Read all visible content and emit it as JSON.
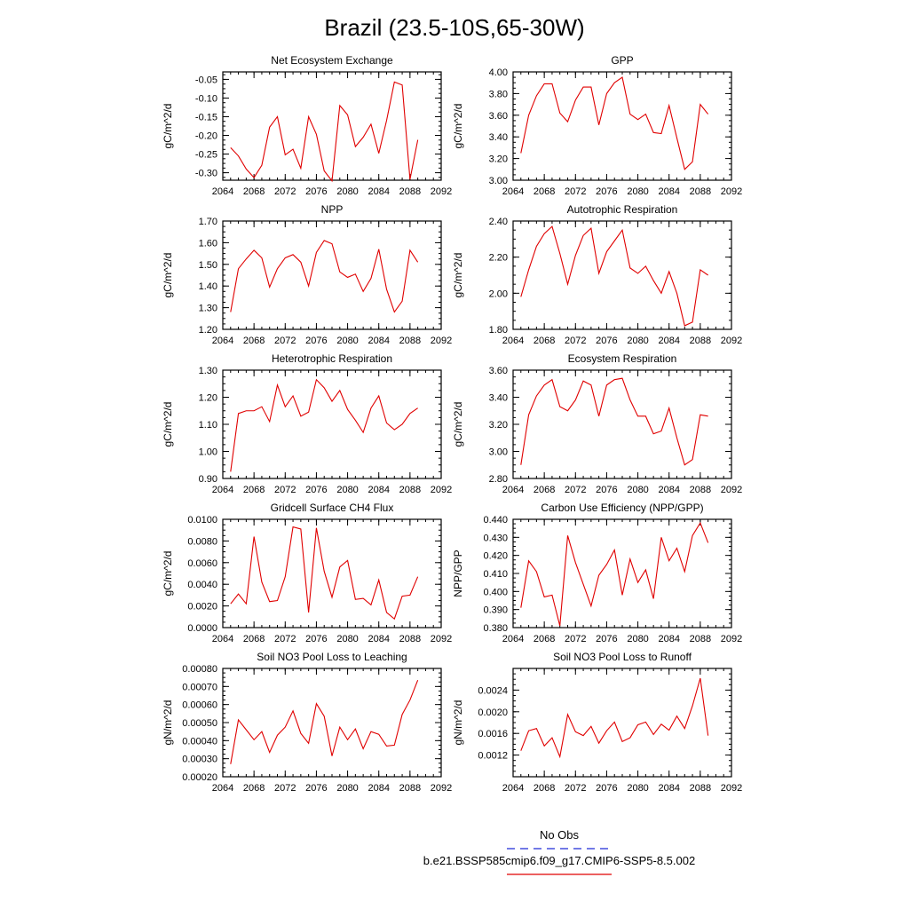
{
  "page": {
    "title": "Brazil (23.5-10S,65-30W)"
  },
  "legend": {
    "entries": [
      {
        "label": "No Obs",
        "color": "#1f2bd6",
        "dash": "dashed"
      },
      {
        "label": "b.e21.BSSP585cmip6.f09_g17.CMIP6-SSP5-8.5.002",
        "color": "#e00000",
        "dash": "solid"
      }
    ]
  },
  "chart_data": [
    {
      "type": "line",
      "title": "Net Ecosystem Exchange",
      "ylabel": "gC/m^2/d",
      "xlim": [
        2064,
        2092
      ],
      "xticks": [
        "2064",
        "2068",
        "2072",
        "2076",
        "2080",
        "2084",
        "2088",
        "2092"
      ],
      "ylim": [
        -0.32,
        -0.03
      ],
      "yticks": [
        "-0.30",
        "-0.25",
        "-0.20",
        "-0.15",
        "-0.10",
        "-0.05"
      ],
      "x": [
        2065,
        2066,
        2067,
        2068,
        2069,
        2070,
        2071,
        2072,
        2073,
        2074,
        2075,
        2076,
        2077,
        2078,
        2079,
        2080,
        2081,
        2082,
        2083,
        2084,
        2085,
        2086,
        2087,
        2088,
        2089
      ],
      "series": [
        {
          "color": "#e00000",
          "values": [
            -0.233,
            -0.255,
            -0.29,
            -0.313,
            -0.28,
            -0.178,
            -0.15,
            -0.252,
            -0.237,
            -0.288,
            -0.15,
            -0.197,
            -0.295,
            -0.322,
            -0.12,
            -0.145,
            -0.23,
            -0.205,
            -0.17,
            -0.248,
            -0.16,
            -0.057,
            -0.065,
            -0.318,
            -0.212
          ]
        }
      ]
    },
    {
      "type": "line",
      "title": "GPP",
      "ylabel": "gC/m^2/d",
      "xlim": [
        2064,
        2092
      ],
      "xticks": [
        "2064",
        "2068",
        "2072",
        "2076",
        "2080",
        "2084",
        "2088",
        "2092"
      ],
      "ylim": [
        3.0,
        4.0
      ],
      "yticks": [
        "3.00",
        "3.20",
        "3.40",
        "3.60",
        "3.80",
        "4.00"
      ],
      "x": [
        2065,
        2066,
        2067,
        2068,
        2069,
        2070,
        2071,
        2072,
        2073,
        2074,
        2075,
        2076,
        2077,
        2078,
        2079,
        2080,
        2081,
        2082,
        2083,
        2084,
        2085,
        2086,
        2087,
        2088,
        2089
      ],
      "series": [
        {
          "color": "#e00000",
          "values": [
            3.25,
            3.6,
            3.78,
            3.89,
            3.89,
            3.62,
            3.54,
            3.74,
            3.86,
            3.86,
            3.51,
            3.8,
            3.9,
            3.95,
            3.61,
            3.56,
            3.61,
            3.44,
            3.43,
            3.69,
            3.39,
            3.1,
            3.17,
            3.7,
            3.61
          ]
        }
      ]
    },
    {
      "type": "line",
      "title": "NPP",
      "ylabel": "gC/m^2/d",
      "xlim": [
        2064,
        2092
      ],
      "xticks": [
        "2064",
        "2068",
        "2072",
        "2076",
        "2080",
        "2084",
        "2088",
        "2092"
      ],
      "ylim": [
        1.2,
        1.7
      ],
      "yticks": [
        "1.20",
        "1.30",
        "1.40",
        "1.50",
        "1.60",
        "1.70"
      ],
      "x": [
        2065,
        2066,
        2067,
        2068,
        2069,
        2070,
        2071,
        2072,
        2073,
        2074,
        2075,
        2076,
        2077,
        2078,
        2079,
        2080,
        2081,
        2082,
        2083,
        2084,
        2085,
        2086,
        2087,
        2088,
        2089
      ],
      "series": [
        {
          "color": "#e00000",
          "values": [
            1.28,
            1.48,
            1.525,
            1.565,
            1.53,
            1.395,
            1.48,
            1.53,
            1.545,
            1.51,
            1.4,
            1.555,
            1.61,
            1.595,
            1.465,
            1.44,
            1.455,
            1.375,
            1.435,
            1.57,
            1.385,
            1.28,
            1.33,
            1.565,
            1.51
          ]
        }
      ]
    },
    {
      "type": "line",
      "title": "Autotrophic Respiration",
      "ylabel": "gC/m^2/d",
      "xlim": [
        2064,
        2092
      ],
      "xticks": [
        "2064",
        "2068",
        "2072",
        "2076",
        "2080",
        "2084",
        "2088",
        "2092"
      ],
      "ylim": [
        1.8,
        2.4
      ],
      "yticks": [
        "1.80",
        "2.00",
        "2.20",
        "2.40"
      ],
      "x": [
        2065,
        2066,
        2067,
        2068,
        2069,
        2070,
        2071,
        2072,
        2073,
        2074,
        2075,
        2076,
        2077,
        2078,
        2079,
        2080,
        2081,
        2082,
        2083,
        2084,
        2085,
        2086,
        2087,
        2088,
        2089
      ],
      "series": [
        {
          "color": "#e00000",
          "values": [
            1.98,
            2.13,
            2.26,
            2.33,
            2.37,
            2.22,
            2.05,
            2.21,
            2.32,
            2.36,
            2.11,
            2.23,
            2.29,
            2.35,
            2.14,
            2.11,
            2.15,
            2.07,
            2.0,
            2.12,
            2.0,
            1.82,
            1.84,
            2.13,
            2.1
          ]
        }
      ]
    },
    {
      "type": "line",
      "title": "Heterotrophic Respiration",
      "ylabel": "gC/m^2/d",
      "xlim": [
        2064,
        2092
      ],
      "xticks": [
        "2064",
        "2068",
        "2072",
        "2076",
        "2080",
        "2084",
        "2088",
        "2092"
      ],
      "ylim": [
        0.9,
        1.3
      ],
      "yticks": [
        "0.90",
        "1.00",
        "1.10",
        "1.20",
        "1.30"
      ],
      "x": [
        2065,
        2066,
        2067,
        2068,
        2069,
        2070,
        2071,
        2072,
        2073,
        2074,
        2075,
        2076,
        2077,
        2078,
        2079,
        2080,
        2081,
        2082,
        2083,
        2084,
        2085,
        2086,
        2087,
        2088,
        2089
      ],
      "series": [
        {
          "color": "#e00000",
          "values": [
            0.925,
            1.14,
            1.15,
            1.15,
            1.165,
            1.11,
            1.245,
            1.165,
            1.205,
            1.13,
            1.145,
            1.265,
            1.235,
            1.185,
            1.225,
            1.155,
            1.115,
            1.07,
            1.16,
            1.205,
            1.105,
            1.08,
            1.1,
            1.14,
            1.16
          ]
        }
      ]
    },
    {
      "type": "line",
      "title": "Ecosystem Respiration",
      "ylabel": "gC/m^2/d",
      "xlim": [
        2064,
        2092
      ],
      "xticks": [
        "2064",
        "2068",
        "2072",
        "2076",
        "2080",
        "2084",
        "2088",
        "2092"
      ],
      "ylim": [
        2.8,
        3.6
      ],
      "yticks": [
        "2.80",
        "3.00",
        "3.20",
        "3.40",
        "3.60"
      ],
      "x": [
        2065,
        2066,
        2067,
        2068,
        2069,
        2070,
        2071,
        2072,
        2073,
        2074,
        2075,
        2076,
        2077,
        2078,
        2079,
        2080,
        2081,
        2082,
        2083,
        2084,
        2085,
        2086,
        2087,
        2088,
        2089
      ],
      "series": [
        {
          "color": "#e00000",
          "values": [
            2.9,
            3.27,
            3.41,
            3.49,
            3.53,
            3.33,
            3.3,
            3.38,
            3.52,
            3.49,
            3.26,
            3.49,
            3.53,
            3.54,
            3.38,
            3.26,
            3.26,
            3.13,
            3.15,
            3.32,
            3.1,
            2.9,
            2.94,
            3.27,
            3.26
          ]
        }
      ]
    },
    {
      "type": "line",
      "title": "Gridcell Surface CH4 Flux",
      "ylabel": "gC/m^2/d",
      "xlim": [
        2064,
        2092
      ],
      "xticks": [
        "2064",
        "2068",
        "2072",
        "2076",
        "2080",
        "2084",
        "2088",
        "2092"
      ],
      "ylim": [
        0.0,
        0.01
      ],
      "yticks": [
        "0.0000",
        "0.0020",
        "0.0040",
        "0.0060",
        "0.0080",
        "0.0100"
      ],
      "x": [
        2065,
        2066,
        2067,
        2068,
        2069,
        2070,
        2071,
        2072,
        2073,
        2074,
        2075,
        2076,
        2077,
        2078,
        2079,
        2080,
        2081,
        2082,
        2083,
        2084,
        2085,
        2086,
        2087,
        2088,
        2089
      ],
      "series": [
        {
          "color": "#e00000",
          "values": [
            0.0022,
            0.0031,
            0.0022,
            0.0084,
            0.0042,
            0.0024,
            0.0025,
            0.0047,
            0.0093,
            0.0091,
            0.0014,
            0.0092,
            0.0052,
            0.0028,
            0.0056,
            0.0062,
            0.0026,
            0.0027,
            0.0021,
            0.0044,
            0.0014,
            0.0008,
            0.0029,
            0.003,
            0.0047
          ]
        }
      ]
    },
    {
      "type": "line",
      "title": "Carbon Use Efficiency (NPP/GPP)",
      "ylabel": "NPP/GPP",
      "xlim": [
        2064,
        2092
      ],
      "xticks": [
        "2064",
        "2068",
        "2072",
        "2076",
        "2080",
        "2084",
        "2088",
        "2092"
      ],
      "ylim": [
        0.38,
        0.44
      ],
      "yticks": [
        "0.380",
        "0.390",
        "0.400",
        "0.410",
        "0.420",
        "0.430",
        "0.440"
      ],
      "x": [
        2065,
        2066,
        2067,
        2068,
        2069,
        2070,
        2071,
        2072,
        2073,
        2074,
        2075,
        2076,
        2077,
        2078,
        2079,
        2080,
        2081,
        2082,
        2083,
        2084,
        2085,
        2086,
        2087,
        2088,
        2089
      ],
      "series": [
        {
          "color": "#e00000",
          "values": [
            0.391,
            0.417,
            0.411,
            0.397,
            0.398,
            0.381,
            0.431,
            0.416,
            0.404,
            0.392,
            0.409,
            0.415,
            0.423,
            0.398,
            0.418,
            0.405,
            0.412,
            0.396,
            0.43,
            0.417,
            0.424,
            0.411,
            0.431,
            0.438,
            0.427
          ]
        }
      ]
    },
    {
      "type": "line",
      "title": "Soil NO3 Pool Loss to Leaching",
      "ylabel": "gN/m^2/d",
      "xlim": [
        2064,
        2092
      ],
      "xticks": [
        "2064",
        "2068",
        "2072",
        "2076",
        "2080",
        "2084",
        "2088",
        "2092"
      ],
      "ylim": [
        0.0002,
        0.0008
      ],
      "yticks": [
        "0.00020",
        "0.00030",
        "0.00040",
        "0.00050",
        "0.00060",
        "0.00070",
        "0.00080"
      ],
      "x": [
        2065,
        2066,
        2067,
        2068,
        2069,
        2070,
        2071,
        2072,
        2073,
        2074,
        2075,
        2076,
        2077,
        2078,
        2079,
        2080,
        2081,
        2082,
        2083,
        2084,
        2085,
        2086,
        2087,
        2088,
        2089
      ],
      "series": [
        {
          "color": "#e00000",
          "values": [
            0.00027,
            0.000515,
            0.00046,
            0.000405,
            0.00045,
            0.000335,
            0.00043,
            0.000475,
            0.000565,
            0.00044,
            0.000385,
            0.000605,
            0.000535,
            0.000315,
            0.000475,
            0.000405,
            0.000465,
            0.000355,
            0.00045,
            0.000435,
            0.00037,
            0.000375,
            0.000545,
            0.000625,
            0.000735
          ]
        }
      ]
    },
    {
      "type": "line",
      "title": "Soil NO3 Pool Loss to Runoff",
      "ylabel": "gN/m^2/d",
      "xlim": [
        2064,
        2092
      ],
      "xticks": [
        "2064",
        "2068",
        "2072",
        "2076",
        "2080",
        "2084",
        "2088",
        "2092"
      ],
      "ylim": [
        0.0008,
        0.0028
      ],
      "yticks": [
        "0.0012",
        "0.0016",
        "0.0020",
        "0.0024"
      ],
      "x": [
        2065,
        2066,
        2067,
        2068,
        2069,
        2070,
        2071,
        2072,
        2073,
        2074,
        2075,
        2076,
        2077,
        2078,
        2079,
        2080,
        2081,
        2082,
        2083,
        2084,
        2085,
        2086,
        2087,
        2088,
        2089
      ],
      "series": [
        {
          "color": "#e00000",
          "values": [
            0.00128,
            0.00165,
            0.00169,
            0.00137,
            0.00152,
            0.00117,
            0.00195,
            0.00163,
            0.00156,
            0.00173,
            0.00142,
            0.00165,
            0.00181,
            0.00145,
            0.00152,
            0.00176,
            0.00181,
            0.00158,
            0.00177,
            0.00166,
            0.00192,
            0.00169,
            0.00211,
            0.00262,
            0.00156
          ]
        }
      ]
    }
  ]
}
